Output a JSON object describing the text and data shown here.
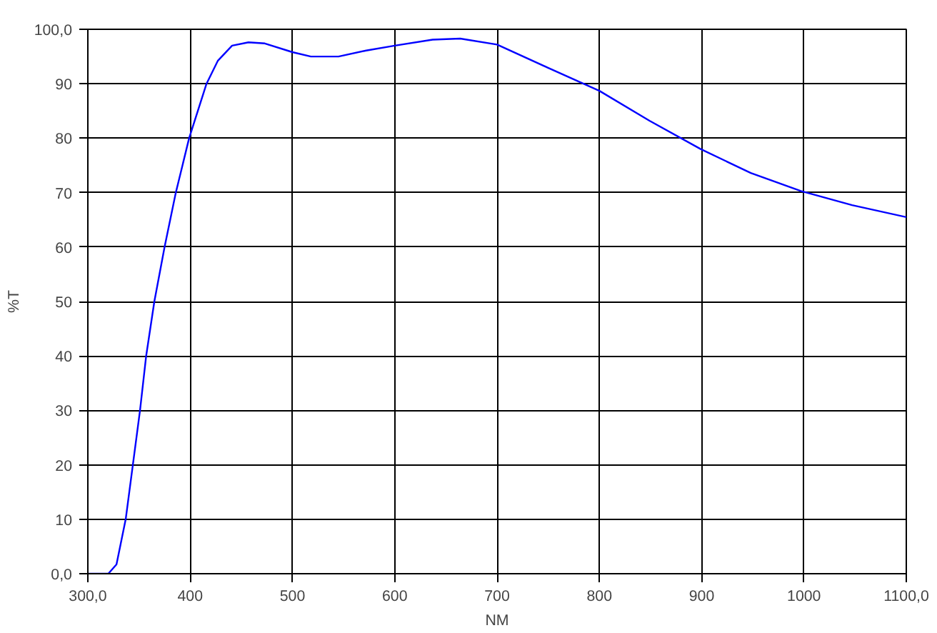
{
  "chart_data": {
    "type": "line",
    "xlabel": "NM",
    "ylabel": "%T",
    "x": [
      300,
      320,
      328,
      337,
      344,
      351,
      357,
      365,
      375,
      386,
      399,
      416,
      427,
      441,
      457,
      473,
      500,
      518,
      545,
      572,
      600,
      637,
      664,
      700,
      749,
      800,
      849,
      899,
      948,
      997,
      1047,
      1100
    ],
    "series": [
      {
        "color": "#0000ff",
        "values": [
          0,
          0,
          1.7,
          10,
          20,
          30,
          40,
          50,
          60,
          70,
          80,
          90,
          94.2,
          97,
          97.6,
          97.4,
          95.8,
          95,
          95,
          96.1,
          97,
          98.1,
          98.3,
          97.2,
          93,
          88.7,
          83.2,
          78,
          73.6,
          70.3,
          67.7,
          65.5
        ]
      }
    ],
    "xlim": [
      300,
      1100
    ],
    "ylim": [
      0,
      100
    ],
    "xticks": [
      {
        "value": 300,
        "label": "300,0"
      },
      400,
      500,
      600,
      700,
      800,
      900,
      1000,
      {
        "value": 1100,
        "label": "1100,0"
      }
    ],
    "yticks": [
      {
        "value": 0,
        "label": "0,0"
      },
      10,
      20,
      30,
      40,
      50,
      60,
      70,
      80,
      90,
      {
        "value": 100,
        "label": "100,0"
      }
    ],
    "grid": true,
    "marker": "none",
    "line_style": "solid"
  }
}
